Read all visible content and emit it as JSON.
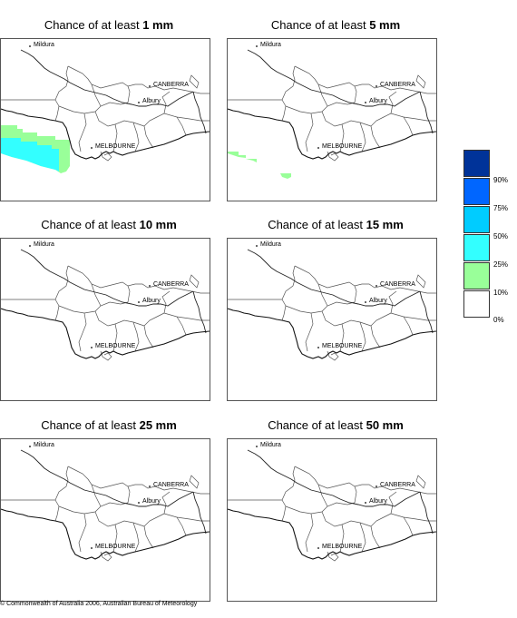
{
  "panels": [
    {
      "prefix": "Chance of at least ",
      "amount": "1 mm",
      "shading": "p1"
    },
    {
      "prefix": "Chance of at least ",
      "amount": "5 mm",
      "shading": "p2"
    },
    {
      "prefix": "Chance of at least ",
      "amount": "10 mm",
      "shading": "none"
    },
    {
      "prefix": "Chance of at least ",
      "amount": "15 mm",
      "shading": "none"
    },
    {
      "prefix": "Chance of at least ",
      "amount": "25 mm",
      "shading": "none"
    },
    {
      "prefix": "Chance of at least ",
      "amount": "50 mm",
      "shading": "none"
    }
  ],
  "map_labels": {
    "mildura": "Mildura",
    "canberra": "CANBERRA",
    "albury": "Albury",
    "melbourne": "MELBOURNE"
  },
  "legend": {
    "labels": [
      "90%",
      "75%",
      "50%",
      "25%",
      "10%",
      "0%"
    ],
    "colors": [
      "#003399",
      "#0066ff",
      "#00ccff",
      "#33ffff",
      "#99ff99",
      "#ffffff"
    ]
  },
  "copyright": "© Commonwealth of Australia 2006, Australian Bureau of Meteorology"
}
